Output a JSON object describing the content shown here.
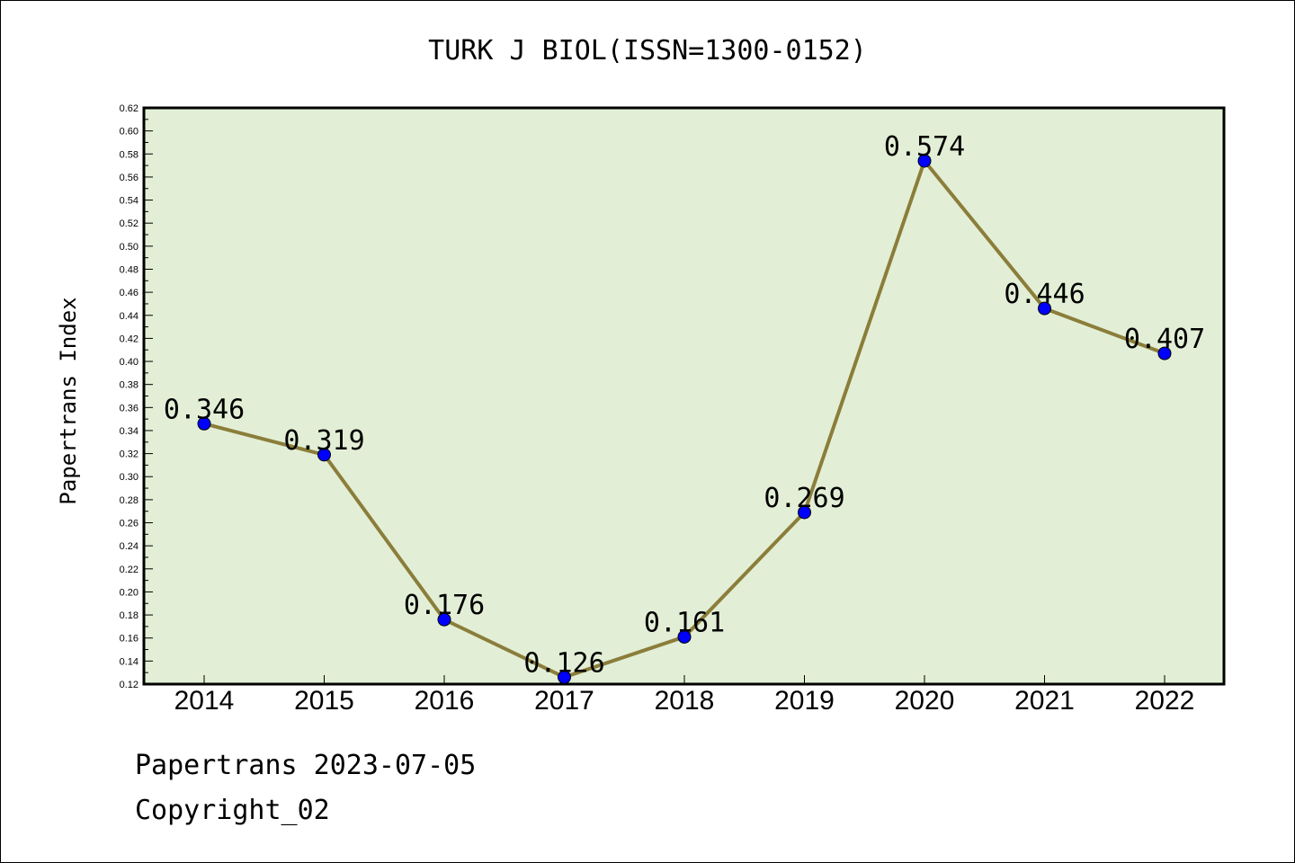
{
  "chart_data": {
    "type": "line",
    "title": "TURK J BIOL(ISSN=1300-0152)",
    "xlabel": "",
    "ylabel": "Papertrans Index",
    "categories": [
      "2014",
      "2015",
      "2016",
      "2017",
      "2018",
      "2019",
      "2020",
      "2021",
      "2022"
    ],
    "values": [
      0.346,
      0.319,
      0.176,
      0.126,
      0.161,
      0.269,
      0.574,
      0.446,
      0.407
    ],
    "data_labels": [
      "0.346",
      "0.319",
      "0.176",
      "0.126",
      "0.161",
      "0.269",
      "0.574",
      "0.446",
      "0.407"
    ],
    "ylim": [
      0.12,
      0.62
    ],
    "yticks": [
      "0.12",
      "0.14",
      "0.16",
      "0.18",
      "0.20",
      "0.22",
      "0.24",
      "0.26",
      "0.28",
      "0.30",
      "0.32",
      "0.34",
      "0.36",
      "0.38",
      "0.40",
      "0.42",
      "0.44",
      "0.46",
      "0.48",
      "0.50",
      "0.52",
      "0.54",
      "0.56",
      "0.58",
      "0.60",
      "0.62"
    ],
    "grid": false,
    "colors": {
      "plot_background": "#e2efd6",
      "line": "#8b7d3a",
      "marker": "#0000ff"
    }
  },
  "footer": {
    "line1": "Papertrans 2023-07-05",
    "line2": "Copyright_02"
  }
}
